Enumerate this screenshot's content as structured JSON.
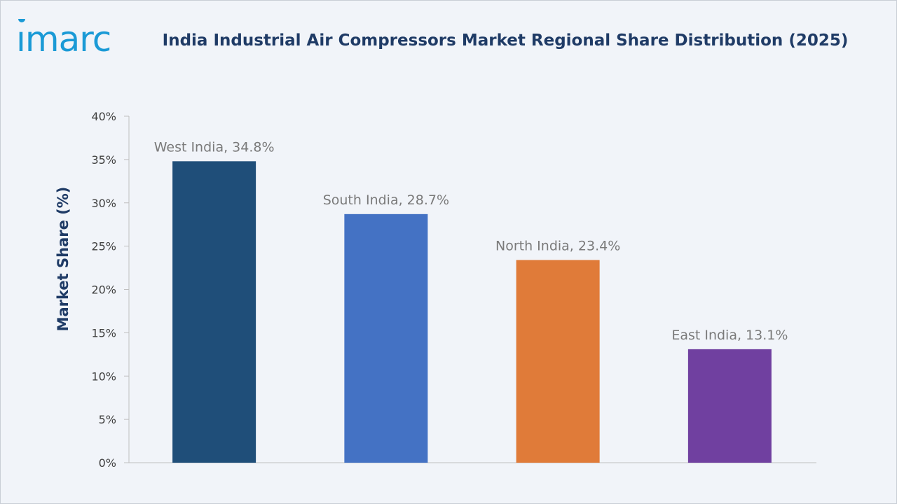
{
  "brand": {
    "logo_text": "imarc"
  },
  "chart_data": {
    "type": "bar",
    "title": "India Industrial Air Compressors Market Regional Share Distribution (2025)",
    "xlabel": "",
    "ylabel": "Market Share (%)",
    "ylim": [
      0,
      40
    ],
    "yticks": [
      "0%",
      "5%",
      "10%",
      "15%",
      "20%",
      "25%",
      "30%",
      "35%",
      "40%"
    ],
    "categories": [
      "West India",
      "South India",
      "North India",
      "East India"
    ],
    "values": [
      34.8,
      28.7,
      23.4,
      13.1
    ],
    "data_labels": [
      "West India, 34.8%",
      "South India, 28.7%",
      "North India, 23.4%",
      "East India, 13.1%"
    ],
    "colors": [
      "#1f4e79",
      "#4472c4",
      "#e07b39",
      "#7040a0"
    ],
    "grid": false,
    "legend": "none"
  }
}
